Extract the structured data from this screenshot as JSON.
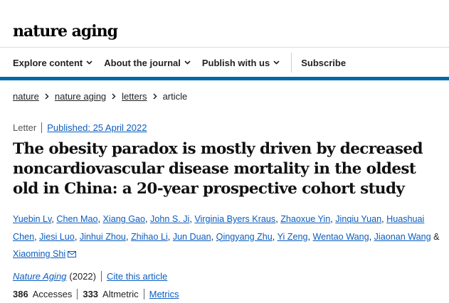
{
  "site": {
    "logo": "nature aging"
  },
  "nav": {
    "items": [
      {
        "label": "Explore content"
      },
      {
        "label": "About the journal"
      },
      {
        "label": "Publish with us"
      }
    ],
    "subscribe": "Subscribe"
  },
  "breadcrumb": [
    "nature",
    "nature aging",
    "letters",
    "article"
  ],
  "article": {
    "type": "Letter",
    "published": "Published: 25 April 2022",
    "title": "The obesity paradox is mostly driven by decreased noncardiovascular disease mortality in the oldest old in China: a 20-year prospective cohort study",
    "authors": [
      "Yuebin Lv",
      "Chen Mao",
      "Xiang Gao",
      "John S. Ji",
      "Virginia Byers Kraus",
      "Zhaoxue Yin",
      "Jinqiu Yuan",
      "Huashuai Chen",
      "Jiesi Luo",
      "Jinhui Zhou",
      "Zhihao Li",
      "Jun Duan",
      "Qingyang Zhu",
      "Yi Zeng",
      "Wentao Wang",
      "Jiaonan Wang"
    ],
    "last_author_prefix": "&",
    "last_author": "Xiaoming Shi",
    "journal": "Nature Aging",
    "year": "(2022)",
    "cite": "Cite this article",
    "accesses_count": "386",
    "accesses_label": "Accesses",
    "altmetric_count": "333",
    "altmetric_label": "Altmetric",
    "metrics_link": "Metrics"
  },
  "colors": {
    "accent_bar": "#0069a5",
    "link": "#0a5dbf"
  },
  "icons": {
    "nav_dropdown": "chevron-down-icon",
    "breadcrumb_sep": "chevron-right-icon",
    "corresponding": "mail-icon"
  }
}
